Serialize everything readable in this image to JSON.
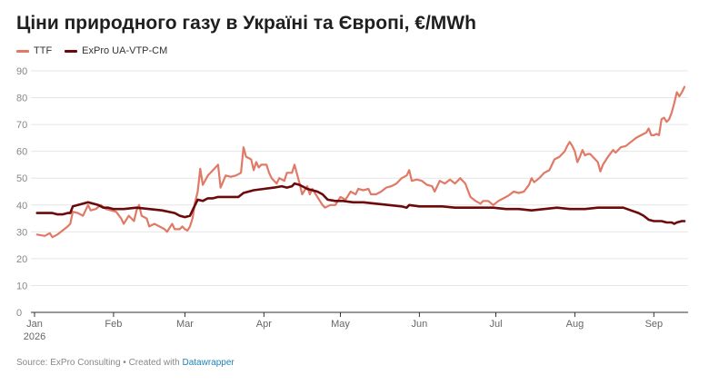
{
  "title": "Ціни природного газу в Україні та Європі, €/MWh",
  "footer": {
    "source": "Source: ExPro Consulting",
    "separator": " • ",
    "created_with": "Created with",
    "link_label": "Datawrapper"
  },
  "colors": {
    "TTF": "#e07a66",
    "ExPro UA-VTP-CM": "#6b0a0a",
    "grid": "#e6e6e6",
    "axis": "#333333",
    "tick_text": "#888888"
  },
  "chart_data": {
    "type": "line",
    "title": "Ціни природного газу в Україні та Європі, €/MWh",
    "xlabel": "",
    "ylabel": "",
    "ylim": [
      0,
      90
    ],
    "y_ticks": [
      0,
      10,
      20,
      30,
      40,
      50,
      60,
      70,
      80,
      90
    ],
    "x_range": [
      "2026-01-01",
      "2026-09-13"
    ],
    "x_ticks": [
      {
        "date": "2026-01-01",
        "label": "Jan",
        "sublabel": "2026"
      },
      {
        "date": "2026-02-01",
        "label": "Feb"
      },
      {
        "date": "2026-03-01",
        "label": "Mar"
      },
      {
        "date": "2026-04-01",
        "label": "Apr"
      },
      {
        "date": "2026-05-01",
        "label": "May"
      },
      {
        "date": "2026-06-01",
        "label": "Jun"
      },
      {
        "date": "2026-07-01",
        "label": "Jul"
      },
      {
        "date": "2026-08-01",
        "label": "Aug"
      },
      {
        "date": "2026-09-01",
        "label": "Sep"
      }
    ],
    "grid": true,
    "legend_position": "top-left",
    "series": [
      {
        "name": "TTF",
        "points": [
          [
            "2026-01-02",
            29
          ],
          [
            "2026-01-05",
            28.5
          ],
          [
            "2026-01-07",
            29.5
          ],
          [
            "2026-01-08",
            28
          ],
          [
            "2026-01-10",
            29
          ],
          [
            "2026-01-12",
            30.5
          ],
          [
            "2026-01-14",
            32
          ],
          [
            "2026-01-15",
            33
          ],
          [
            "2026-01-16",
            37.5
          ],
          [
            "2026-01-18",
            37
          ],
          [
            "2026-01-20",
            36
          ],
          [
            "2026-01-21",
            38
          ],
          [
            "2026-01-22",
            40
          ],
          [
            "2026-01-23",
            38
          ],
          [
            "2026-01-25",
            38.5
          ],
          [
            "2026-01-27",
            40
          ],
          [
            "2026-01-29",
            38.5
          ],
          [
            "2026-01-31",
            38
          ],
          [
            "2026-02-02",
            37.5
          ],
          [
            "2026-02-04",
            35
          ],
          [
            "2026-02-05",
            33
          ],
          [
            "2026-02-07",
            36
          ],
          [
            "2026-02-09",
            34
          ],
          [
            "2026-02-10",
            38
          ],
          [
            "2026-02-11",
            40
          ],
          [
            "2026-02-12",
            36
          ],
          [
            "2026-02-14",
            35
          ],
          [
            "2026-02-15",
            32
          ],
          [
            "2026-02-17",
            33
          ],
          [
            "2026-02-19",
            32
          ],
          [
            "2026-02-21",
            31
          ],
          [
            "2026-02-22",
            30
          ],
          [
            "2026-02-23",
            31.5
          ],
          [
            "2026-02-24",
            33
          ],
          [
            "2026-02-25",
            31
          ],
          [
            "2026-02-27",
            31
          ],
          [
            "2026-02-28",
            32
          ],
          [
            "2026-03-01",
            31
          ],
          [
            "2026-03-02",
            30.5
          ],
          [
            "2026-03-03",
            32
          ],
          [
            "2026-03-04",
            35
          ],
          [
            "2026-03-05",
            41
          ],
          [
            "2026-03-06",
            45
          ],
          [
            "2026-03-07",
            53.5
          ],
          [
            "2026-03-08",
            47.5
          ],
          [
            "2026-03-10",
            51
          ],
          [
            "2026-03-12",
            53
          ],
          [
            "2026-03-14",
            55
          ],
          [
            "2026-03-15",
            46.5
          ],
          [
            "2026-03-17",
            51
          ],
          [
            "2026-03-19",
            50.5
          ],
          [
            "2026-03-21",
            51
          ],
          [
            "2026-03-23",
            52
          ],
          [
            "2026-03-24",
            61.5
          ],
          [
            "2026-03-25",
            58
          ],
          [
            "2026-03-27",
            57
          ],
          [
            "2026-03-28",
            53
          ],
          [
            "2026-03-29",
            56
          ],
          [
            "2026-03-30",
            54
          ],
          [
            "2026-03-31",
            55
          ],
          [
            "2026-04-02",
            55
          ],
          [
            "2026-04-03",
            52
          ],
          [
            "2026-04-04",
            50
          ],
          [
            "2026-04-06",
            48
          ],
          [
            "2026-04-07",
            50
          ],
          [
            "2026-04-09",
            49
          ],
          [
            "2026-04-10",
            52
          ],
          [
            "2026-04-12",
            52
          ],
          [
            "2026-04-13",
            55
          ],
          [
            "2026-04-15",
            48
          ],
          [
            "2026-04-16",
            44
          ],
          [
            "2026-04-18",
            47
          ],
          [
            "2026-04-19",
            44
          ],
          [
            "2026-04-20",
            46
          ],
          [
            "2026-04-22",
            43
          ],
          [
            "2026-04-24",
            40
          ],
          [
            "2026-04-25",
            39
          ],
          [
            "2026-04-27",
            40
          ],
          [
            "2026-04-29",
            40
          ],
          [
            "2026-05-01",
            43
          ],
          [
            "2026-05-03",
            42
          ],
          [
            "2026-05-05",
            45
          ],
          [
            "2026-05-07",
            44
          ],
          [
            "2026-05-08",
            46
          ],
          [
            "2026-05-10",
            45.5
          ],
          [
            "2026-05-12",
            46
          ],
          [
            "2026-05-13",
            44
          ],
          [
            "2026-05-15",
            44
          ],
          [
            "2026-05-17",
            45
          ],
          [
            "2026-05-19",
            46.5
          ],
          [
            "2026-05-21",
            47
          ],
          [
            "2026-05-23",
            48
          ],
          [
            "2026-05-25",
            50
          ],
          [
            "2026-05-27",
            51
          ],
          [
            "2026-05-28",
            53
          ],
          [
            "2026-05-29",
            49
          ],
          [
            "2026-05-31",
            49.5
          ],
          [
            "2026-06-02",
            49
          ],
          [
            "2026-06-04",
            47.5
          ],
          [
            "2026-06-06",
            47
          ],
          [
            "2026-06-07",
            45
          ],
          [
            "2026-06-09",
            49
          ],
          [
            "2026-06-11",
            48
          ],
          [
            "2026-06-13",
            49.5
          ],
          [
            "2026-06-15",
            48
          ],
          [
            "2026-06-17",
            50
          ],
          [
            "2026-06-19",
            48
          ],
          [
            "2026-06-21",
            43
          ],
          [
            "2026-06-23",
            41.5
          ],
          [
            "2026-06-25",
            40.5
          ],
          [
            "2026-06-26",
            41.5
          ],
          [
            "2026-06-28",
            41.5
          ],
          [
            "2026-06-30",
            40
          ],
          [
            "2026-07-02",
            41.5
          ],
          [
            "2026-07-04",
            42.5
          ],
          [
            "2026-07-06",
            43.5
          ],
          [
            "2026-07-08",
            45
          ],
          [
            "2026-07-10",
            44.5
          ],
          [
            "2026-07-12",
            45
          ],
          [
            "2026-07-14",
            47.5
          ],
          [
            "2026-07-15",
            50
          ],
          [
            "2026-07-16",
            48.5
          ],
          [
            "2026-07-18",
            50
          ],
          [
            "2026-07-20",
            52
          ],
          [
            "2026-07-22",
            53
          ],
          [
            "2026-07-24",
            57
          ],
          [
            "2026-07-26",
            58
          ],
          [
            "2026-07-28",
            60
          ],
          [
            "2026-07-29",
            62
          ],
          [
            "2026-07-30",
            63.5
          ],
          [
            "2026-07-31",
            62
          ],
          [
            "2026-08-01",
            60
          ],
          [
            "2026-08-02",
            56
          ],
          [
            "2026-08-03",
            58
          ],
          [
            "2026-08-04",
            60.5
          ],
          [
            "2026-08-05",
            58.5
          ],
          [
            "2026-08-06",
            59
          ],
          [
            "2026-08-07",
            59
          ],
          [
            "2026-08-08",
            58
          ],
          [
            "2026-08-10",
            56
          ],
          [
            "2026-08-11",
            52.5
          ],
          [
            "2026-08-12",
            55
          ],
          [
            "2026-08-14",
            58
          ],
          [
            "2026-08-16",
            60.5
          ],
          [
            "2026-08-17",
            59.5
          ],
          [
            "2026-08-19",
            61.5
          ],
          [
            "2026-08-21",
            62
          ],
          [
            "2026-08-23",
            63.5
          ],
          [
            "2026-08-25",
            65
          ],
          [
            "2026-08-27",
            66
          ],
          [
            "2026-08-29",
            67
          ],
          [
            "2026-08-30",
            68.5
          ],
          [
            "2026-08-31",
            66
          ],
          [
            "2026-09-01",
            66
          ],
          [
            "2026-09-02",
            66.5
          ],
          [
            "2026-09-03",
            66
          ],
          [
            "2026-09-04",
            72
          ],
          [
            "2026-09-05",
            72.5
          ],
          [
            "2026-09-06",
            71
          ],
          [
            "2026-09-07",
            72
          ],
          [
            "2026-09-08",
            74.5
          ],
          [
            "2026-09-09",
            78
          ],
          [
            "2026-09-10",
            82
          ],
          [
            "2026-09-11",
            80.5
          ],
          [
            "2026-09-12",
            82
          ],
          [
            "2026-09-13",
            84
          ]
        ]
      },
      {
        "name": "ExPro UA-VTP-CM",
        "points": [
          [
            "2026-01-02",
            37
          ],
          [
            "2026-01-08",
            37
          ],
          [
            "2026-01-10",
            36.5
          ],
          [
            "2026-01-12",
            36.5
          ],
          [
            "2026-01-14",
            37
          ],
          [
            "2026-01-15",
            37
          ],
          [
            "2026-01-16",
            39.5
          ],
          [
            "2026-01-18",
            40
          ],
          [
            "2026-01-20",
            40.5
          ],
          [
            "2026-01-22",
            41
          ],
          [
            "2026-01-24",
            40.5
          ],
          [
            "2026-01-26",
            40
          ],
          [
            "2026-01-28",
            39
          ],
          [
            "2026-01-30",
            39
          ],
          [
            "2026-02-01",
            38.5
          ],
          [
            "2026-02-05",
            38.5
          ],
          [
            "2026-02-10",
            39
          ],
          [
            "2026-02-15",
            38.5
          ],
          [
            "2026-02-20",
            38
          ],
          [
            "2026-02-25",
            37
          ],
          [
            "2026-02-27",
            36
          ],
          [
            "2026-03-01",
            35.5
          ],
          [
            "2026-03-03",
            36
          ],
          [
            "2026-03-05",
            40
          ],
          [
            "2026-03-06",
            42
          ],
          [
            "2026-03-08",
            41.5
          ],
          [
            "2026-03-10",
            42.5
          ],
          [
            "2026-03-12",
            42.5
          ],
          [
            "2026-03-14",
            43
          ],
          [
            "2026-03-18",
            43
          ],
          [
            "2026-03-22",
            43
          ],
          [
            "2026-03-24",
            44.5
          ],
          [
            "2026-03-26",
            45
          ],
          [
            "2026-03-28",
            45.5
          ],
          [
            "2026-04-01",
            46
          ],
          [
            "2026-04-05",
            46.5
          ],
          [
            "2026-04-08",
            47
          ],
          [
            "2026-04-10",
            46.5
          ],
          [
            "2026-04-12",
            47
          ],
          [
            "2026-04-13",
            48
          ],
          [
            "2026-04-15",
            47.5
          ],
          [
            "2026-04-18",
            46
          ],
          [
            "2026-04-20",
            45.5
          ],
          [
            "2026-04-22",
            45
          ],
          [
            "2026-04-24",
            44
          ],
          [
            "2026-04-25",
            43
          ],
          [
            "2026-04-26",
            42
          ],
          [
            "2026-04-29",
            41.5
          ],
          [
            "2026-05-02",
            41.5
          ],
          [
            "2026-05-06",
            41
          ],
          [
            "2026-05-10",
            41
          ],
          [
            "2026-05-15",
            40.5
          ],
          [
            "2026-05-20",
            40
          ],
          [
            "2026-05-25",
            39.5
          ],
          [
            "2026-05-27",
            39
          ],
          [
            "2026-05-28",
            40
          ],
          [
            "2026-06-01",
            39.5
          ],
          [
            "2026-06-05",
            39.5
          ],
          [
            "2026-06-10",
            39.5
          ],
          [
            "2026-06-15",
            39
          ],
          [
            "2026-06-20",
            39
          ],
          [
            "2026-06-25",
            39
          ],
          [
            "2026-06-30",
            39
          ],
          [
            "2026-07-05",
            38.5
          ],
          [
            "2026-07-10",
            38.5
          ],
          [
            "2026-07-15",
            38
          ],
          [
            "2026-07-20",
            38.5
          ],
          [
            "2026-07-25",
            39
          ],
          [
            "2026-07-30",
            38.5
          ],
          [
            "2026-08-05",
            38.5
          ],
          [
            "2026-08-10",
            39
          ],
          [
            "2026-08-15",
            39
          ],
          [
            "2026-08-20",
            39
          ],
          [
            "2026-08-23",
            38
          ],
          [
            "2026-08-26",
            37
          ],
          [
            "2026-08-28",
            36
          ],
          [
            "2026-08-30",
            34.5
          ],
          [
            "2026-09-01",
            34
          ],
          [
            "2026-09-04",
            34
          ],
          [
            "2026-09-06",
            33.5
          ],
          [
            "2026-09-08",
            33.5
          ],
          [
            "2026-09-09",
            33
          ],
          [
            "2026-09-10",
            33.5
          ],
          [
            "2026-09-12",
            34
          ],
          [
            "2026-09-13",
            34
          ]
        ]
      }
    ]
  }
}
